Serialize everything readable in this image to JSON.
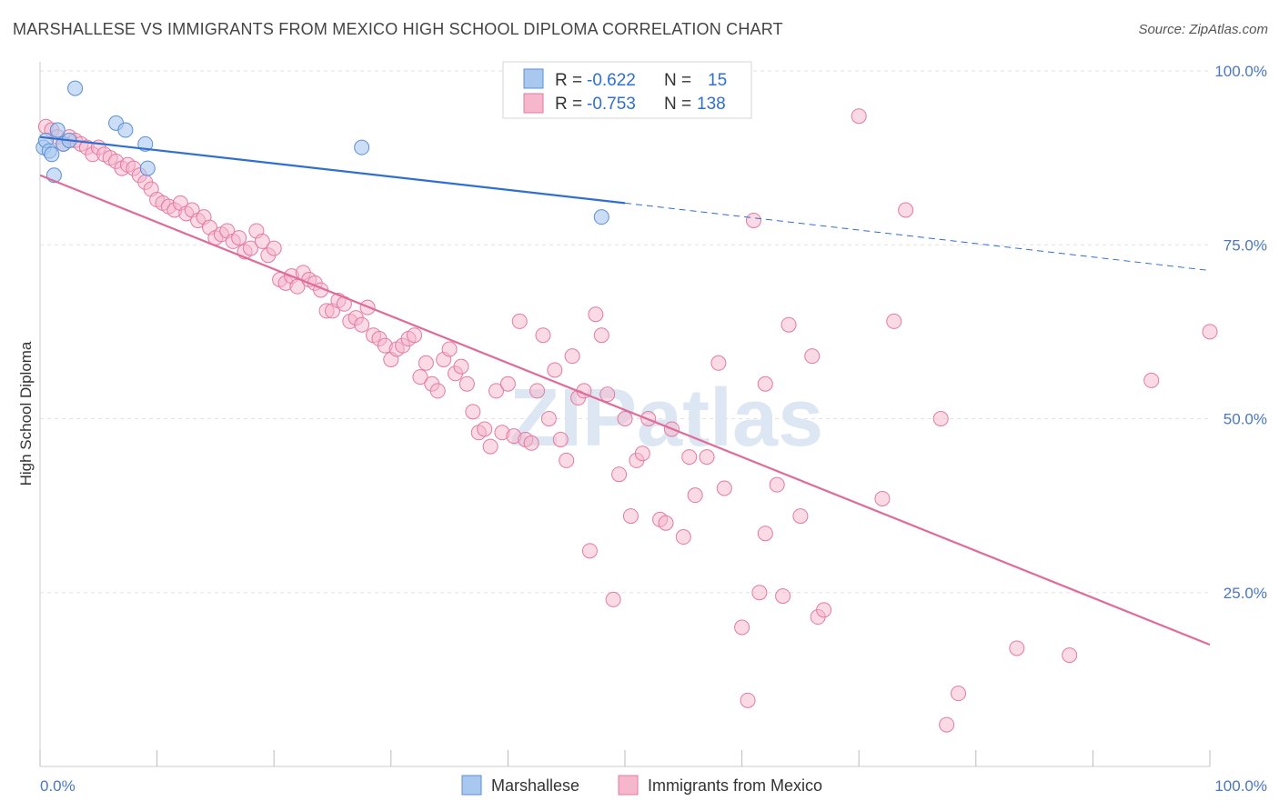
{
  "title": "MARSHALLESE VS IMMIGRANTS FROM MEXICO HIGH SCHOOL DIPLOMA CORRELATION CHART",
  "source": "Source: ZipAtlas.com",
  "watermark": "ZIPatlas",
  "colors": {
    "marshallese_fill": "#a9c8f0",
    "marshallese_stroke": "#5b8fd6",
    "marshallese_line": "#2f6fd0",
    "mexico_fill": "#f6b6cc",
    "mexico_stroke": "#e47aa1",
    "mexico_line": "#e06a98",
    "grid": "#e2e2e2",
    "axis_text": "#4a78c2"
  },
  "legend_top": {
    "items": [
      {
        "r_label": "R =",
        "r_value": "-0.622",
        "n_label": "N =",
        "n_value": "15"
      },
      {
        "r_label": "R =",
        "r_value": "-0.753",
        "n_label": "N =",
        "n_value": "138"
      }
    ]
  },
  "legend_bottom": [
    "Marshallese",
    "Immigrants from Mexico"
  ],
  "chart_data": {
    "type": "scatter",
    "title": "MARSHALLESE VS IMMIGRANTS FROM MEXICO HIGH SCHOOL DIPLOMA CORRELATION CHART",
    "ylabel": "High School Diploma",
    "xlabel": "",
    "xlim": [
      0,
      100
    ],
    "ylim": [
      0,
      100
    ],
    "y_ticks": [
      25,
      50,
      75,
      100
    ],
    "y_tick_labels": [
      "25.0%",
      "50.0%",
      "75.0%",
      "100.0%"
    ],
    "x_tick_labels": [
      "0.0%",
      "100.0%"
    ],
    "grid": true,
    "series": [
      {
        "name": "Marshallese",
        "r": -0.622,
        "n": 15,
        "trend": {
          "x0": 0,
          "y0": 90.5,
          "x1": 50,
          "y1": 81.0,
          "dash_to_x": 100,
          "dash_to_y": 71.3
        },
        "points": [
          [
            0.3,
            89.0
          ],
          [
            0.5,
            90.0
          ],
          [
            0.8,
            88.5
          ],
          [
            1.0,
            88.0
          ],
          [
            1.2,
            85.0
          ],
          [
            1.5,
            91.5
          ],
          [
            2.0,
            89.5
          ],
          [
            2.5,
            90.0
          ],
          [
            3.0,
            97.5
          ],
          [
            6.5,
            92.5
          ],
          [
            7.3,
            91.5
          ],
          [
            9.0,
            89.5
          ],
          [
            9.2,
            86.0
          ],
          [
            27.5,
            89.0
          ],
          [
            48.0,
            79.0
          ]
        ]
      },
      {
        "name": "Immigrants from Mexico",
        "r": -0.753,
        "n": 138,
        "trend": {
          "x0": 0,
          "y0": 85.0,
          "x1": 100,
          "y1": 17.5
        },
        "points": [
          [
            0.5,
            92.0
          ],
          [
            1.0,
            91.5
          ],
          [
            1.5,
            90.5
          ],
          [
            2.0,
            89.5
          ],
          [
            2.5,
            90.5
          ],
          [
            3.0,
            90.0
          ],
          [
            3.5,
            89.5
          ],
          [
            4.0,
            89.0
          ],
          [
            4.5,
            88.0
          ],
          [
            5.0,
            89.0
          ],
          [
            5.5,
            88.0
          ],
          [
            6.0,
            87.5
          ],
          [
            6.5,
            87.0
          ],
          [
            7.0,
            86.0
          ],
          [
            7.5,
            86.5
          ],
          [
            8.0,
            86.0
          ],
          [
            8.5,
            85.0
          ],
          [
            9.0,
            84.0
          ],
          [
            9.5,
            83.0
          ],
          [
            10.0,
            81.5
          ],
          [
            10.5,
            81.0
          ],
          [
            11.0,
            80.5
          ],
          [
            11.5,
            80.0
          ],
          [
            12.0,
            81.0
          ],
          [
            12.5,
            79.5
          ],
          [
            13.0,
            80.0
          ],
          [
            13.5,
            78.5
          ],
          [
            14.0,
            79.0
          ],
          [
            14.5,
            77.5
          ],
          [
            15.0,
            76.0
          ],
          [
            15.5,
            76.5
          ],
          [
            16.0,
            77.0
          ],
          [
            16.5,
            75.5
          ],
          [
            17.0,
            76.0
          ],
          [
            17.5,
            74.0
          ],
          [
            18.0,
            74.5
          ],
          [
            18.5,
            77.0
          ],
          [
            19.0,
            75.5
          ],
          [
            19.5,
            73.5
          ],
          [
            20.0,
            74.5
          ],
          [
            20.5,
            70.0
          ],
          [
            21.0,
            69.5
          ],
          [
            21.5,
            70.5
          ],
          [
            22.0,
            69.0
          ],
          [
            22.5,
            71.0
          ],
          [
            23.0,
            70.0
          ],
          [
            23.5,
            69.5
          ],
          [
            24.0,
            68.5
          ],
          [
            24.5,
            65.5
          ],
          [
            25.0,
            65.5
          ],
          [
            25.5,
            67.0
          ],
          [
            26.0,
            66.5
          ],
          [
            26.5,
            64.0
          ],
          [
            27.0,
            64.5
          ],
          [
            27.5,
            63.5
          ],
          [
            28.0,
            66.0
          ],
          [
            28.5,
            62.0
          ],
          [
            29.0,
            61.5
          ],
          [
            29.5,
            60.5
          ],
          [
            30.0,
            58.5
          ],
          [
            30.5,
            60.0
          ],
          [
            31.0,
            60.5
          ],
          [
            31.5,
            61.5
          ],
          [
            32.0,
            62.0
          ],
          [
            32.5,
            56.0
          ],
          [
            33.0,
            58.0
          ],
          [
            33.5,
            55.0
          ],
          [
            34.0,
            54.0
          ],
          [
            34.5,
            58.5
          ],
          [
            35.0,
            60.0
          ],
          [
            35.5,
            56.5
          ],
          [
            36.0,
            57.5
          ],
          [
            36.5,
            55.0
          ],
          [
            37.0,
            51.0
          ],
          [
            37.5,
            48.0
          ],
          [
            38.0,
            48.5
          ],
          [
            38.5,
            46.0
          ],
          [
            39.0,
            54.0
          ],
          [
            39.5,
            48.0
          ],
          [
            40.0,
            55.0
          ],
          [
            40.5,
            47.5
          ],
          [
            41.0,
            64.0
          ],
          [
            41.5,
            47.0
          ],
          [
            42.0,
            46.5
          ],
          [
            42.5,
            54.0
          ],
          [
            43.0,
            62.0
          ],
          [
            43.5,
            50.0
          ],
          [
            44.0,
            57.0
          ],
          [
            44.5,
            47.0
          ],
          [
            45.0,
            44.0
          ],
          [
            45.5,
            59.0
          ],
          [
            46.0,
            53.0
          ],
          [
            46.5,
            54.0
          ],
          [
            47.0,
            31.0
          ],
          [
            47.5,
            65.0
          ],
          [
            48.0,
            62.0
          ],
          [
            48.5,
            53.5
          ],
          [
            49.0,
            24.0
          ],
          [
            49.5,
            42.0
          ],
          [
            50.0,
            50.0
          ],
          [
            50.5,
            36.0
          ],
          [
            51.0,
            44.0
          ],
          [
            51.5,
            45.0
          ],
          [
            52.0,
            50.0
          ],
          [
            53.0,
            35.5
          ],
          [
            53.5,
            35.0
          ],
          [
            54.0,
            48.5
          ],
          [
            55.0,
            33.0
          ],
          [
            55.5,
            44.5
          ],
          [
            56.0,
            39.0
          ],
          [
            57.0,
            44.5
          ],
          [
            58.0,
            58.0
          ],
          [
            58.5,
            40.0
          ],
          [
            60.0,
            20.0
          ],
          [
            60.5,
            9.5
          ],
          [
            61.0,
            78.5
          ],
          [
            61.5,
            25.0
          ],
          [
            62.0,
            33.5
          ],
          [
            63.0,
            40.5
          ],
          [
            63.5,
            24.5
          ],
          [
            64.0,
            63.5
          ],
          [
            65.0,
            36.0
          ],
          [
            66.0,
            59.0
          ],
          [
            66.5,
            21.5
          ],
          [
            67.0,
            22.5
          ],
          [
            70.0,
            93.5
          ],
          [
            72.0,
            38.5
          ],
          [
            73.0,
            64.0
          ],
          [
            74.0,
            80.0
          ],
          [
            77.0,
            50.0
          ],
          [
            77.5,
            6.0
          ],
          [
            78.5,
            10.5
          ],
          [
            83.5,
            17.0
          ],
          [
            88.0,
            16.0
          ],
          [
            95.0,
            55.5
          ],
          [
            100.0,
            62.5
          ],
          [
            62.0,
            55.0
          ]
        ]
      }
    ]
  }
}
